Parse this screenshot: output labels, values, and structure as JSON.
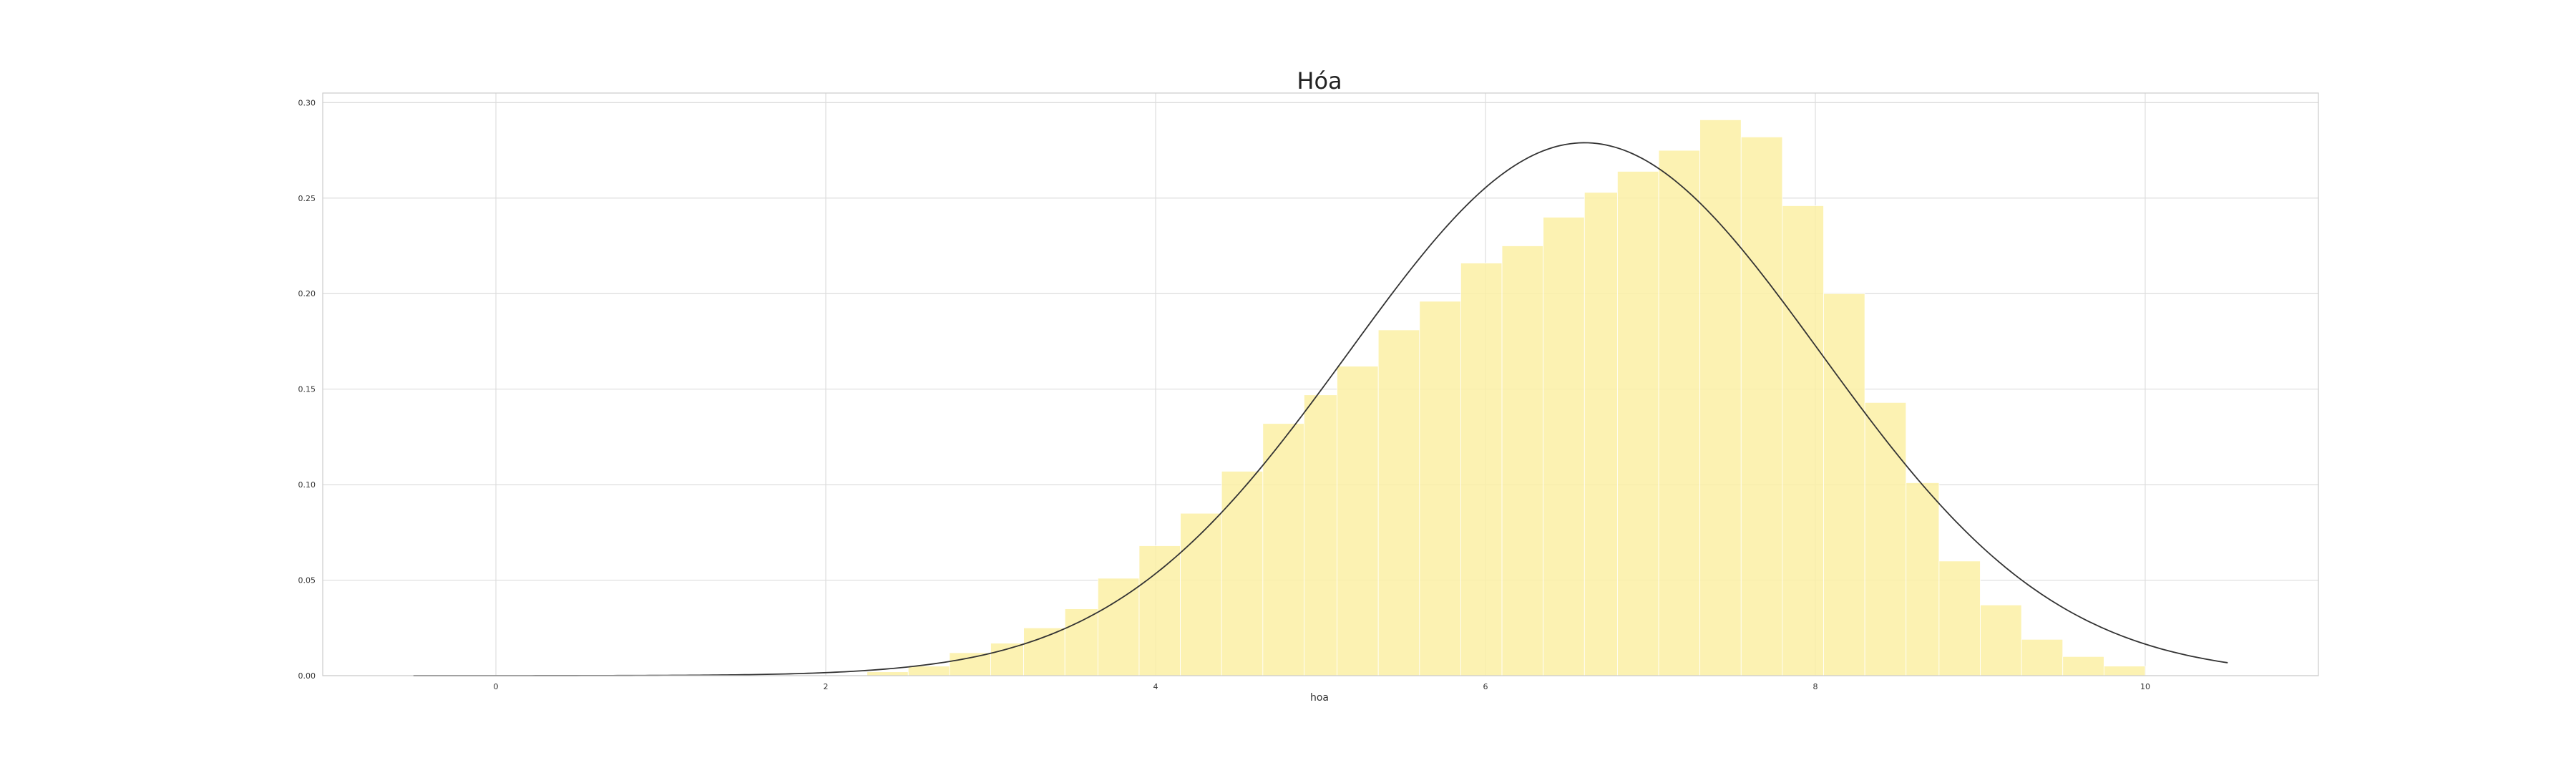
{
  "chart_data": {
    "type": "bar",
    "title": "Hóa",
    "xlabel": "hoa",
    "ylabel": "",
    "xlim": [
      -1.05,
      11.05
    ],
    "ylim": [
      0,
      0.305
    ],
    "xticks": [
      0,
      2,
      4,
      6,
      8,
      10
    ],
    "xtick_labels": [
      "0",
      "2",
      "4",
      "6",
      "8",
      "10"
    ],
    "yticks": [
      0.0,
      0.05,
      0.1,
      0.15,
      0.2,
      0.25,
      0.3
    ],
    "ytick_labels": [
      "0.00",
      "0.05",
      "0.10",
      "0.15",
      "0.20",
      "0.25",
      "0.30"
    ],
    "grid": true,
    "bar_color": "#fcf0a4",
    "curve_color": "#333333",
    "histogram": {
      "bins": [
        {
          "x0": 2.25,
          "x1": 2.5,
          "value": 0.002
        },
        {
          "x0": 2.5,
          "x1": 2.75,
          "value": 0.005
        },
        {
          "x0": 2.75,
          "x1": 3.0,
          "value": 0.012
        },
        {
          "x0": 3.0,
          "x1": 3.2,
          "value": 0.017
        },
        {
          "x0": 3.2,
          "x1": 3.45,
          "value": 0.025
        },
        {
          "x0": 3.45,
          "x1": 3.65,
          "value": 0.035
        },
        {
          "x0": 3.65,
          "x1": 3.9,
          "value": 0.051
        },
        {
          "x0": 3.9,
          "x1": 4.15,
          "value": 0.068
        },
        {
          "x0": 4.15,
          "x1": 4.4,
          "value": 0.085
        },
        {
          "x0": 4.4,
          "x1": 4.65,
          "value": 0.107
        },
        {
          "x0": 4.65,
          "x1": 4.9,
          "value": 0.132
        },
        {
          "x0": 4.9,
          "x1": 5.1,
          "value": 0.147
        },
        {
          "x0": 5.1,
          "x1": 5.35,
          "value": 0.162
        },
        {
          "x0": 5.35,
          "x1": 5.6,
          "value": 0.181
        },
        {
          "x0": 5.6,
          "x1": 5.85,
          "value": 0.196
        },
        {
          "x0": 5.85,
          "x1": 6.1,
          "value": 0.216
        },
        {
          "x0": 6.1,
          "x1": 6.35,
          "value": 0.225
        },
        {
          "x0": 6.35,
          "x1": 6.6,
          "value": 0.24
        },
        {
          "x0": 6.6,
          "x1": 6.8,
          "value": 0.253
        },
        {
          "x0": 6.8,
          "x1": 7.05,
          "value": 0.264
        },
        {
          "x0": 7.05,
          "x1": 7.3,
          "value": 0.275
        },
        {
          "x0": 7.3,
          "x1": 7.55,
          "value": 0.291
        },
        {
          "x0": 7.55,
          "x1": 7.8,
          "value": 0.282
        },
        {
          "x0": 7.8,
          "x1": 8.05,
          "value": 0.246
        },
        {
          "x0": 8.05,
          "x1": 8.3,
          "value": 0.2
        },
        {
          "x0": 8.3,
          "x1": 8.55,
          "value": 0.143
        },
        {
          "x0": 8.55,
          "x1": 8.75,
          "value": 0.101
        },
        {
          "x0": 8.75,
          "x1": 9.0,
          "value": 0.06
        },
        {
          "x0": 9.0,
          "x1": 9.25,
          "value": 0.037
        },
        {
          "x0": 9.25,
          "x1": 9.5,
          "value": 0.019
        },
        {
          "x0": 9.5,
          "x1": 9.75,
          "value": 0.01
        },
        {
          "x0": 9.75,
          "x1": 10.0,
          "value": 0.005
        }
      ]
    },
    "normal_fit": {
      "mean": 6.6,
      "std": 1.43,
      "x_range": [
        -0.5,
        10.5
      ]
    }
  }
}
